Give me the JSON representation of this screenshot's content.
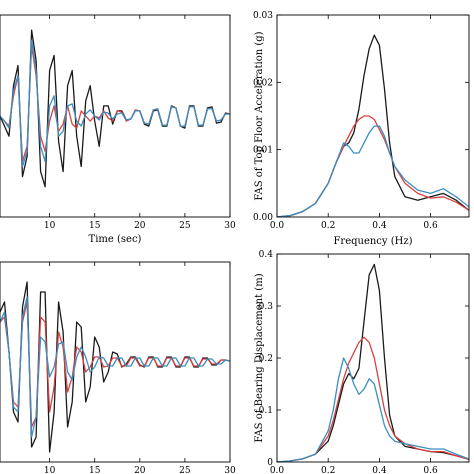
{
  "chart_data": [
    {
      "type": "line",
      "xlabel": "Time (sec)",
      "ylabel": "",
      "xlim": [
        4.5,
        30
      ],
      "ylim": [
        -1.0,
        1.0
      ],
      "x_ticks": [
        "10",
        "15",
        "20",
        "25",
        "30"
      ],
      "y_ticks": [],
      "grid": false,
      "series": [
        {
          "color": "#1a1a1a",
          "x": [
            4.5,
            5,
            5.5,
            6,
            6.5,
            7,
            7.5,
            8,
            8.5,
            9,
            9.5,
            10,
            10.5,
            11,
            11.5,
            12,
            12.5,
            13,
            13.5,
            14,
            14.5,
            15,
            15.5,
            16,
            16.5,
            17,
            17.5,
            18,
            18.5,
            19,
            19.5,
            20,
            20.5,
            21,
            21.5,
            22,
            22.5,
            23,
            23.5,
            24,
            24.5,
            25,
            25.5,
            26,
            26.5,
            27,
            27.5,
            28,
            28.5,
            29,
            29.5,
            30
          ],
          "y": [
            0.0,
            -0.1,
            -0.2,
            0.3,
            0.5,
            -0.6,
            -0.4,
            0.85,
            0.55,
            -0.55,
            -0.7,
            0.45,
            0.6,
            -0.25,
            -0.55,
            0.3,
            0.45,
            -0.2,
            -0.5,
            0.15,
            0.3,
            -0.05,
            -0.3,
            0.1,
            0.1,
            -0.08,
            0.05,
            0.05,
            -0.04,
            -0.03,
            0.05,
            0.05,
            -0.08,
            -0.1,
            0.05,
            0.06,
            -0.1,
            -0.1,
            0.1,
            0.08,
            -0.1,
            -0.12,
            0.1,
            0.1,
            -0.1,
            -0.1,
            0.08,
            0.09,
            -0.07,
            -0.06,
            0.03,
            0.02
          ]
        },
        {
          "color": "#d94040",
          "x": [
            4.5,
            5,
            5.5,
            6,
            6.5,
            7,
            7.5,
            8,
            8.5,
            9,
            9.5,
            10,
            10.5,
            11,
            11.5,
            12,
            12.5,
            13,
            13.5,
            14,
            14.5,
            15,
            15.5,
            16,
            16.5,
            17,
            17.5,
            18,
            18.5,
            19,
            19.5,
            20,
            20.5,
            21,
            21.5,
            22,
            22.5,
            23,
            23.5,
            24,
            24.5,
            25,
            25.5,
            26,
            26.5,
            27,
            27.5,
            28,
            28.5,
            29,
            29.5,
            30
          ],
          "y": [
            0.0,
            -0.05,
            -0.1,
            0.2,
            0.4,
            -0.45,
            -0.3,
            0.7,
            0.4,
            -0.2,
            -0.35,
            -0.05,
            0.1,
            -0.15,
            -0.08,
            0.1,
            -0.08,
            -0.12,
            0.05,
            0.0,
            -0.05,
            0.0,
            -0.02,
            0.05,
            -0.02,
            -0.05,
            0.05,
            0.04,
            -0.05,
            -0.03,
            0.06,
            0.05,
            -0.07,
            -0.08,
            0.06,
            0.07,
            -0.09,
            -0.09,
            0.09,
            0.08,
            -0.1,
            -0.1,
            0.09,
            0.09,
            -0.09,
            -0.09,
            0.07,
            0.07,
            -0.05,
            -0.04,
            0.02,
            0.02
          ]
        },
        {
          "color": "#3a8fc0",
          "x": [
            4.5,
            5,
            5.5,
            6,
            6.5,
            7,
            7.5,
            8,
            8.5,
            9,
            9.5,
            10,
            10.5,
            11,
            11.5,
            12,
            12.5,
            13,
            13.5,
            14,
            14.5,
            15,
            15.5,
            16,
            16.5,
            17,
            17.5,
            18,
            18.5,
            19,
            19.5,
            20,
            20.5,
            21,
            21.5,
            22,
            22.5,
            23,
            23.5,
            24,
            24.5,
            25,
            25.5,
            26,
            26.5,
            27,
            27.5,
            28,
            28.5,
            29,
            29.5,
            30
          ],
          "y": [
            0.0,
            -0.05,
            -0.12,
            0.25,
            0.4,
            -0.5,
            -0.35,
            0.75,
            0.45,
            -0.3,
            -0.45,
            0.1,
            0.2,
            -0.2,
            -0.15,
            0.1,
            0.12,
            -0.05,
            -0.1,
            0.02,
            0.06,
            0.0,
            -0.04,
            0.04,
            0.03,
            -0.03,
            0.02,
            0.03,
            -0.04,
            -0.03,
            0.05,
            0.05,
            -0.07,
            -0.08,
            0.06,
            0.07,
            -0.09,
            -0.09,
            0.09,
            0.08,
            -0.1,
            -0.1,
            0.09,
            0.09,
            -0.09,
            -0.09,
            0.07,
            0.07,
            -0.05,
            -0.04,
            0.02,
            0.02
          ]
        }
      ]
    },
    {
      "type": "line",
      "xlabel": "Frequency (Hz)",
      "ylabel": "FAS of Top Floor Acceleration (g)",
      "xlim": [
        0,
        0.75
      ],
      "ylim": [
        0,
        0.03
      ],
      "x_ticks": [
        "0.0",
        "0.2",
        "0.4",
        "0.6"
      ],
      "y_ticks": [
        "0.00",
        "0.01",
        "0.02",
        "0.03"
      ],
      "grid": false,
      "series": [
        {
          "color": "#1a1a1a",
          "x": [
            0,
            0.05,
            0.1,
            0.15,
            0.2,
            0.23,
            0.26,
            0.28,
            0.3,
            0.32,
            0.34,
            0.36,
            0.38,
            0.4,
            0.42,
            0.44,
            0.46,
            0.5,
            0.55,
            0.6,
            0.65,
            0.7,
            0.75
          ],
          "y": [
            0.0,
            0.0002,
            0.0008,
            0.002,
            0.005,
            0.008,
            0.0105,
            0.011,
            0.0125,
            0.016,
            0.021,
            0.025,
            0.027,
            0.0255,
            0.019,
            0.011,
            0.006,
            0.003,
            0.0025,
            0.003,
            0.0035,
            0.0025,
            0.001
          ]
        },
        {
          "color": "#d94040",
          "x": [
            0,
            0.05,
            0.1,
            0.15,
            0.2,
            0.23,
            0.26,
            0.28,
            0.3,
            0.32,
            0.34,
            0.36,
            0.38,
            0.4,
            0.42,
            0.44,
            0.46,
            0.5,
            0.55,
            0.6,
            0.65,
            0.7,
            0.75
          ],
          "y": [
            0.0,
            0.0002,
            0.0008,
            0.002,
            0.005,
            0.008,
            0.0105,
            0.012,
            0.0135,
            0.0145,
            0.015,
            0.015,
            0.0145,
            0.013,
            0.0115,
            0.0095,
            0.0075,
            0.005,
            0.0035,
            0.0028,
            0.003,
            0.0022,
            0.001
          ]
        },
        {
          "color": "#3a8fc0",
          "x": [
            0,
            0.05,
            0.1,
            0.15,
            0.2,
            0.23,
            0.26,
            0.28,
            0.3,
            0.32,
            0.34,
            0.36,
            0.38,
            0.4,
            0.42,
            0.44,
            0.46,
            0.5,
            0.55,
            0.6,
            0.65,
            0.7,
            0.75
          ],
          "y": [
            0.0,
            0.0002,
            0.0008,
            0.002,
            0.005,
            0.008,
            0.011,
            0.0105,
            0.0095,
            0.0095,
            0.011,
            0.0125,
            0.0135,
            0.0135,
            0.012,
            0.0095,
            0.0075,
            0.0055,
            0.004,
            0.0035,
            0.0042,
            0.003,
            0.0015
          ]
        }
      ]
    },
    {
      "type": "line",
      "xlabel": "",
      "ylabel": "",
      "xlim": [
        4.5,
        30
      ],
      "ylim": [
        -1.0,
        1.0
      ],
      "x_ticks": [
        "10",
        "15",
        "20",
        "25",
        "30"
      ],
      "y_ticks": [],
      "grid": false,
      "series": [
        {
          "color": "#1a1a1a",
          "x": [
            4.5,
            5,
            5.5,
            6,
            6.5,
            7,
            7.5,
            8,
            8.5,
            9,
            9.5,
            10,
            10.5,
            11,
            11.5,
            12,
            12.5,
            13,
            13.5,
            14,
            14.5,
            15,
            15.5,
            16,
            16.5,
            17,
            17.5,
            18,
            18.5,
            19,
            19.5,
            20,
            20.5,
            21,
            21.5,
            22,
            22.5,
            23,
            23.5,
            24,
            24.5,
            25,
            25.5,
            26,
            26.5,
            27,
            27.5,
            28,
            28.5,
            29,
            29.5,
            30
          ],
          "y": [
            0.5,
            0.6,
            0.1,
            -0.5,
            -0.6,
            0.55,
            0.8,
            -0.85,
            -0.75,
            0.7,
            0.7,
            -0.9,
            -0.5,
            0.6,
            0.3,
            -0.65,
            -0.4,
            0.4,
            0.35,
            -0.4,
            -0.25,
            0.25,
            0.15,
            -0.2,
            -0.1,
            0.1,
            0.08,
            -0.05,
            -0.02,
            0.05,
            0.05,
            -0.03,
            -0.05,
            0.05,
            0.05,
            -0.05,
            -0.05,
            0.05,
            0.05,
            -0.05,
            -0.05,
            0.05,
            0.05,
            -0.05,
            -0.05,
            0.04,
            0.04,
            -0.03,
            -0.03,
            0.02,
            0.02,
            0.01
          ]
        },
        {
          "color": "#d94040",
          "x": [
            4.5,
            5,
            5.5,
            6,
            6.5,
            7,
            7.5,
            8,
            8.5,
            9,
            9.5,
            10,
            10.5,
            11,
            11.5,
            12,
            12.5,
            13,
            13.5,
            14,
            14.5,
            15,
            15.5,
            16,
            16.5,
            17,
            17.5,
            18,
            18.5,
            19,
            19.5,
            20,
            20.5,
            21,
            21.5,
            22,
            22.5,
            23,
            23.5,
            24,
            24.5,
            25,
            25.5,
            26,
            26.5,
            27,
            27.5,
            28,
            28.5,
            29,
            29.5,
            30
          ],
          "y": [
            0.4,
            0.45,
            0.1,
            -0.4,
            -0.45,
            0.4,
            0.6,
            -0.65,
            -0.55,
            0.45,
            0.4,
            -0.5,
            -0.25,
            0.3,
            0.15,
            -0.3,
            -0.15,
            0.15,
            0.1,
            -0.1,
            -0.05,
            0.05,
            0.05,
            -0.05,
            -0.04,
            0.04,
            0.04,
            -0.04,
            -0.04,
            0.04,
            0.04,
            -0.04,
            -0.04,
            0.04,
            0.04,
            -0.04,
            -0.04,
            0.04,
            0.04,
            -0.04,
            -0.04,
            0.04,
            0.04,
            -0.04,
            -0.04,
            0.03,
            0.03,
            -0.02,
            -0.02,
            0.02,
            0.02,
            0.01
          ]
        },
        {
          "color": "#3a8fc0",
          "x": [
            4.5,
            5,
            5.5,
            6,
            6.5,
            7,
            7.5,
            8,
            8.5,
            9,
            9.5,
            10,
            10.5,
            11,
            11.5,
            12,
            12.5,
            13,
            13.5,
            14,
            14.5,
            15,
            15.5,
            16,
            16.5,
            17,
            17.5,
            18,
            18.5,
            19,
            19.5,
            20,
            20.5,
            21,
            21.5,
            22,
            22.5,
            23,
            23.5,
            24,
            24.5,
            25,
            25.5,
            26,
            26.5,
            27,
            27.5,
            28,
            28.5,
            29,
            29.5,
            30
          ],
          "y": [
            0.4,
            0.5,
            0.1,
            -0.45,
            -0.5,
            0.45,
            0.65,
            -0.75,
            -0.55,
            0.25,
            0.2,
            -0.15,
            -0.05,
            0.18,
            0.2,
            -0.1,
            -0.18,
            0.05,
            0.15,
            0.05,
            -0.1,
            -0.05,
            0.05,
            0.04,
            -0.04,
            -0.04,
            0.04,
            0.04,
            -0.04,
            -0.04,
            0.04,
            0.04,
            -0.04,
            -0.04,
            0.04,
            0.04,
            -0.04,
            -0.04,
            0.04,
            0.04,
            -0.04,
            -0.04,
            0.04,
            0.04,
            -0.04,
            -0.04,
            0.03,
            0.03,
            -0.02,
            -0.02,
            0.02,
            0.01
          ]
        }
      ]
    },
    {
      "type": "line",
      "xlabel": "",
      "ylabel": "FAS of Bearing Displacement (m)",
      "xlim": [
        0,
        0.75
      ],
      "ylim": [
        0,
        0.4
      ],
      "x_ticks": [
        "0.0",
        "0.2",
        "0.4",
        "0.6"
      ],
      "y_ticks": [
        "0",
        "0.1",
        "0.2",
        "0.3",
        "0.4"
      ],
      "grid": false,
      "series": [
        {
          "color": "#1a1a1a",
          "x": [
            0,
            0.05,
            0.1,
            0.15,
            0.2,
            0.22,
            0.24,
            0.26,
            0.28,
            0.3,
            0.32,
            0.34,
            0.36,
            0.38,
            0.4,
            0.42,
            0.44,
            0.46,
            0.5,
            0.55,
            0.6,
            0.65,
            0.7,
            0.75
          ],
          "y": [
            0.0,
            0.002,
            0.006,
            0.015,
            0.04,
            0.07,
            0.11,
            0.15,
            0.17,
            0.16,
            0.18,
            0.27,
            0.36,
            0.38,
            0.33,
            0.2,
            0.09,
            0.05,
            0.03,
            0.025,
            0.02,
            0.018,
            0.012,
            0.005
          ]
        },
        {
          "color": "#d94040",
          "x": [
            0,
            0.05,
            0.1,
            0.15,
            0.2,
            0.22,
            0.24,
            0.26,
            0.28,
            0.3,
            0.32,
            0.34,
            0.36,
            0.38,
            0.4,
            0.42,
            0.44,
            0.46,
            0.5,
            0.55,
            0.6,
            0.65,
            0.7,
            0.75
          ],
          "y": [
            0.0,
            0.002,
            0.006,
            0.015,
            0.05,
            0.08,
            0.12,
            0.16,
            0.19,
            0.21,
            0.23,
            0.24,
            0.23,
            0.2,
            0.15,
            0.1,
            0.07,
            0.05,
            0.035,
            0.025,
            0.02,
            0.02,
            0.012,
            0.005
          ]
        },
        {
          "color": "#3a8fc0",
          "x": [
            0,
            0.05,
            0.1,
            0.15,
            0.2,
            0.22,
            0.24,
            0.26,
            0.28,
            0.3,
            0.32,
            0.34,
            0.36,
            0.38,
            0.4,
            0.42,
            0.44,
            0.46,
            0.5,
            0.55,
            0.6,
            0.65,
            0.7,
            0.75
          ],
          "y": [
            0.0,
            0.002,
            0.006,
            0.015,
            0.06,
            0.1,
            0.16,
            0.2,
            0.18,
            0.15,
            0.13,
            0.14,
            0.16,
            0.15,
            0.11,
            0.07,
            0.05,
            0.04,
            0.035,
            0.03,
            0.025,
            0.025,
            0.015,
            0.006
          ]
        }
      ]
    }
  ]
}
